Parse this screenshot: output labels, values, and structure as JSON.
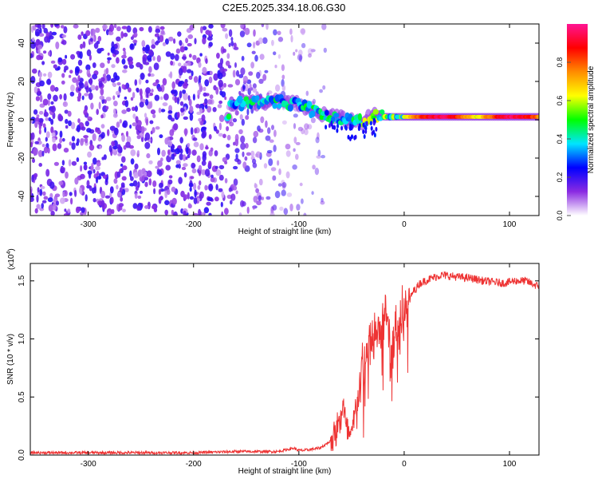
{
  "figure_title": "C2E5.2025.334.18.06.G30",
  "chart_data": [
    {
      "type": "heatmap",
      "title": "C2E5.2025.334.18.06.G30",
      "xlabel": "Height of straight line (km)",
      "ylabel": "Frequency (Hz)",
      "xlim": [
        -355,
        128
      ],
      "ylim": [
        -50,
        50
      ],
      "xticks": [
        -300,
        -200,
        -100,
        0,
        100
      ],
      "yticks": [
        -40,
        -20,
        0,
        20,
        40
      ],
      "colorbar": {
        "label": "Normalized spectral amplitude",
        "range": [
          0,
          1
        ],
        "ticks": [
          0.0,
          0.2,
          0.4,
          0.6,
          0.8
        ],
        "tick_labels": [
          "0.0",
          "0.2",
          "0.4",
          "0.6",
          "0.8"
        ],
        "colors": [
          "#ffffff",
          "#8a2be2",
          "#0000ff",
          "#00e5ff",
          "#00ff00",
          "#ffff00",
          "#ff8c00",
          "#ff0000",
          "#ff1493"
        ]
      },
      "signal_track": [
        {
          "x": -165,
          "freq": 8.5
        },
        {
          "x": -140,
          "freq": 9
        },
        {
          "x": -120,
          "freq": 9.5
        },
        {
          "x": -100,
          "freq": 8
        },
        {
          "x": -85,
          "freq": 4
        },
        {
          "x": -70,
          "freq": 2
        },
        {
          "x": -55,
          "freq": 0
        },
        {
          "x": -40,
          "freq": -1
        },
        {
          "x": -30,
          "freq": 2
        },
        {
          "x": -15,
          "freq": 1.5
        },
        {
          "x": 0,
          "freq": 1.5
        },
        {
          "x": 40,
          "freq": 1.5
        },
        {
          "x": 80,
          "freq": 1.5
        },
        {
          "x": 128,
          "freq": 1.5
        }
      ],
      "noise_region": {
        "x_from": -355,
        "x_to": -95
      }
    },
    {
      "type": "line",
      "xlabel": "Height of straight line (km)",
      "ylabel": "SNR (10 * v/v)",
      "scale_label": "(x10",
      "scale_exponent": "4",
      "scale_close": ")",
      "xlim": [
        -355,
        128
      ],
      "ylim": [
        0,
        1.65
      ],
      "xticks": [
        -300,
        -200,
        -100,
        0,
        100
      ],
      "yticks": [
        0.0,
        0.5,
        1.0,
        1.5
      ],
      "ytick_labels": [
        "0.0",
        "0.5",
        "1.0",
        "1.5"
      ],
      "series_color": "#ee3333",
      "series": [
        {
          "name": "SNR",
          "x": [
            -355,
            -300,
            -250,
            -200,
            -160,
            -120,
            -105,
            -100,
            -95,
            -80,
            -70,
            -62,
            -58,
            -55,
            -50,
            -45,
            -40,
            -35,
            -30,
            -25,
            -20,
            -16,
            -12,
            -8,
            -4,
            0,
            4,
            8,
            15,
            25,
            35,
            45,
            55,
            65,
            75,
            85,
            95,
            105,
            115,
            128
          ],
          "y": [
            0.02,
            0.02,
            0.02,
            0.02,
            0.03,
            0.03,
            0.06,
            0.04,
            0.04,
            0.06,
            0.12,
            0.25,
            0.45,
            0.2,
            0.15,
            0.45,
            0.7,
            0.85,
            1.0,
            1.05,
            1.15,
            1.3,
            0.9,
            1.1,
            1.2,
            1.25,
            1.3,
            1.4,
            1.48,
            1.52,
            1.55,
            1.54,
            1.53,
            1.52,
            1.5,
            1.49,
            1.48,
            1.5,
            1.5,
            1.45
          ]
        }
      ]
    }
  ]
}
